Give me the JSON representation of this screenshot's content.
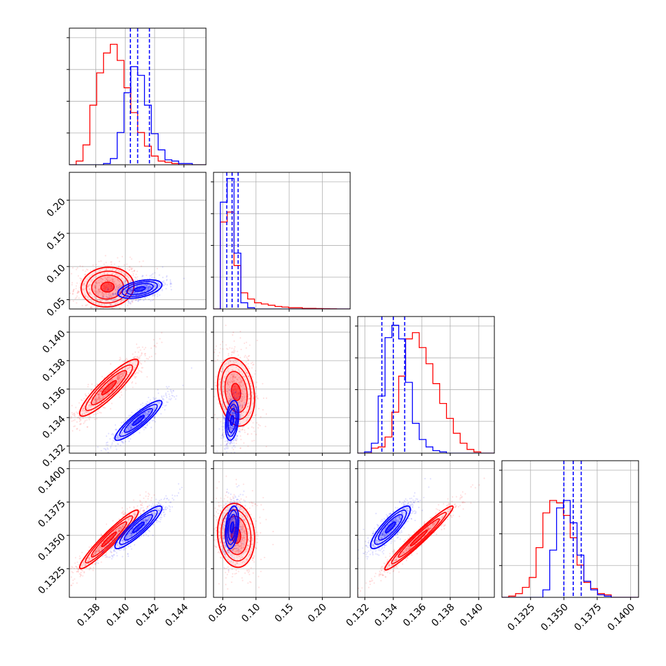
{
  "colors": {
    "red": "#ff0000",
    "blue": "#0000ff",
    "grid": "#b0b0b0",
    "frame": "#000000"
  },
  "chart_data": {
    "type": "corner",
    "grid": true,
    "series": [
      {
        "name": "",
        "color": "#ff0000"
      },
      {
        "name": "",
        "color": "#0000ff"
      }
    ],
    "params": [
      {
        "range": [
          0.1362,
          0.1455
        ],
        "ticks": [
          "0.138",
          "0.140",
          "0.142",
          "0.144"
        ],
        "tick_values": [
          0.138,
          0.14,
          0.142,
          0.144
        ]
      },
      {
        "range": [
          0.036,
          0.242
        ],
        "ticks": [
          "0.05",
          "0.10",
          "0.15",
          "0.20"
        ],
        "tick_values": [
          0.05,
          0.1,
          0.15,
          0.2
        ]
      },
      {
        "range": [
          0.1315,
          0.1411
        ],
        "ticks": [
          "0.132",
          "0.134",
          "0.136",
          "0.138",
          "0.140"
        ],
        "tick_values": [
          0.132,
          0.134,
          0.136,
          0.138,
          0.14
        ]
      },
      {
        "range": [
          0.13035,
          0.1406
        ],
        "ticks": [
          "0.1325",
          "0.1350",
          "0.1375",
          "0.1400"
        ],
        "tick_values": [
          0.1325,
          0.135,
          0.1375,
          0.14
        ]
      }
    ],
    "quantiles_blue": [
      [
        0.14035,
        0.14085,
        0.14165
      ],
      [
        0.056,
        0.064,
        0.073
      ],
      [
        0.1332,
        0.134,
        0.1348
      ],
      [
        0.135,
        0.1357,
        0.1363
      ]
    ],
    "histograms": [
      {
        "red": [
          0,
          0.03,
          0.16,
          0.48,
          0.74,
          0.9,
          0.97,
          0.84,
          0.62,
          0.42,
          0.26,
          0.15,
          0.07,
          0.03,
          0.02,
          0.01,
          0,
          0,
          0,
          0
        ],
        "blue": [
          0,
          0,
          0,
          0,
          0,
          0.01,
          0.05,
          0.26,
          0.58,
          0.79,
          0.72,
          0.48,
          0.25,
          0.12,
          0.04,
          0.03,
          0.01,
          0.01,
          0,
          0
        ]
      },
      {
        "red": [
          0,
          0.7,
          0.78,
          0.35,
          0.13,
          0.08,
          0.05,
          0.04,
          0.03,
          0.02,
          0.015,
          0.01,
          0.01,
          0.005,
          0.005,
          0.003,
          0.002,
          0.001,
          0,
          0
        ],
        "blue": [
          0,
          0.86,
          1.05,
          0.45,
          0.05,
          0.01,
          0,
          0,
          0,
          0,
          0,
          0,
          0,
          0,
          0,
          0,
          0,
          0,
          0,
          0
        ]
      },
      {
        "red": [
          0,
          0,
          0.04,
          0.05,
          0.13,
          0.33,
          0.62,
          0.92,
          0.97,
          0.85,
          0.72,
          0.56,
          0.4,
          0.28,
          0.16,
          0.08,
          0.03,
          0.01,
          0,
          0
        ],
        "blue": [
          0,
          0.01,
          0.08,
          0.46,
          0.93,
          1.03,
          0.92,
          0.57,
          0.24,
          0.11,
          0.05,
          0.02,
          0.01,
          0,
          0,
          0,
          0,
          0,
          0,
          0
        ]
      },
      {
        "red": [
          0,
          0.01,
          0.03,
          0.08,
          0.16,
          0.4,
          0.68,
          0.78,
          0.76,
          0.66,
          0.48,
          0.26,
          0.12,
          0.07,
          0.03,
          0.02,
          0,
          0,
          0,
          0
        ],
        "blue": [
          0,
          0,
          0,
          0,
          0,
          0,
          0.06,
          0.38,
          0.72,
          0.78,
          0.6,
          0.34,
          0.13,
          0.06,
          0.02,
          0.01,
          0,
          0,
          0,
          0
        ]
      }
    ],
    "pairs": [
      {
        "row": 1,
        "col": 0,
        "red": {
          "mean": [
            0.1388,
            0.069
          ],
          "sd": [
            0.0009,
            0.015
          ],
          "rho": 0.05
        },
        "blue": {
          "mean": [
            0.141,
            0.066
          ],
          "sd": [
            0.00075,
            0.007
          ],
          "rho": 0.45
        }
      },
      {
        "row": 2,
        "col": 0,
        "red": {
          "mean": [
            0.1389,
            0.1361
          ],
          "sd": [
            0.001,
            0.001
          ],
          "rho": 0.9
        },
        "blue": {
          "mean": [
            0.1409,
            0.1338
          ],
          "sd": [
            0.0008,
            0.0007
          ],
          "rho": 0.9
        }
      },
      {
        "row": 2,
        "col": 1,
        "red": {
          "mean": [
            0.07,
            0.1358
          ],
          "sd": [
            0.014,
            0.0012
          ],
          "rho": -0.2
        },
        "blue": {
          "mean": [
            0.064,
            0.1338
          ],
          "sd": [
            0.005,
            0.0007
          ],
          "rho": 0.3
        }
      },
      {
        "row": 3,
        "col": 0,
        "red": {
          "mean": [
            0.1389,
            0.1347
          ],
          "sd": [
            0.001,
            0.0011
          ],
          "rho": 0.95
        },
        "blue": {
          "mean": [
            0.1409,
            0.1356
          ],
          "sd": [
            0.0008,
            0.0008
          ],
          "rho": 0.9
        }
      },
      {
        "row": 3,
        "col": 1,
        "red": {
          "mean": [
            0.07,
            0.135
          ],
          "sd": [
            0.014,
            0.0012
          ],
          "rho": -0.1
        },
        "blue": {
          "mean": [
            0.064,
            0.1356
          ],
          "sd": [
            0.005,
            0.0008
          ],
          "rho": 0.3
        }
      },
      {
        "row": 3,
        "col": 2,
        "red": {
          "mean": [
            0.1358,
            0.1348
          ],
          "sd": [
            0.0012,
            0.0012
          ],
          "rho": 0.97
        },
        "blue": {
          "mean": [
            0.1338,
            0.1356
          ],
          "sd": [
            0.0007,
            0.0008
          ],
          "rho": 0.85
        }
      }
    ]
  }
}
